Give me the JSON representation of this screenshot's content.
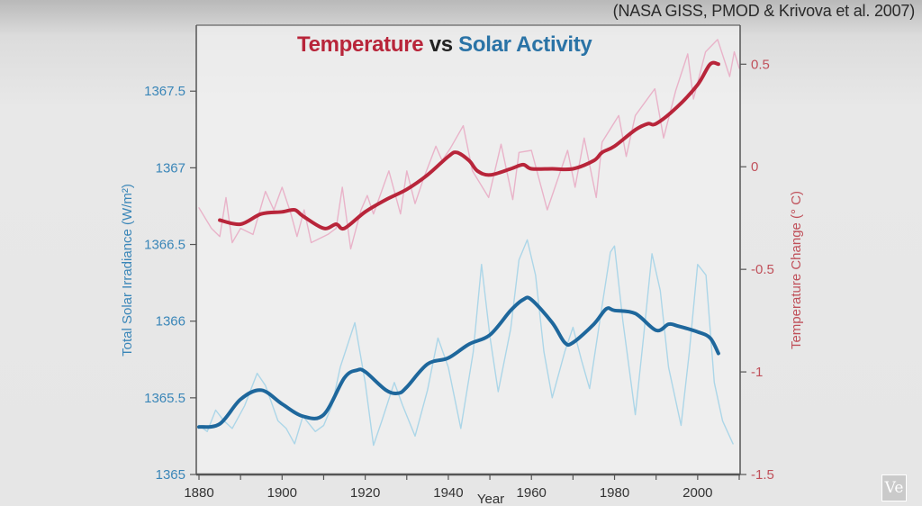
{
  "source": "(NASA GISS, PMOD & Krivova et al. 2007)",
  "logo_text": "Ve",
  "colors": {
    "temperature": "#b8253a",
    "temperature_raw": "#e9b3c9",
    "solar": "#1e679c",
    "solar_raw": "#acd6e8",
    "left_axis_text": "#3a86b8",
    "right_axis_text": "#c0505a"
  },
  "chart_data": {
    "type": "line",
    "title": {
      "part1": "Temperature",
      "part2": "vs",
      "part3": "Solar Activity"
    },
    "xlabel": "Year",
    "ylabel_left": "Total Solar Irradiance (W/m²)",
    "ylabel_right": "Temperature Change (° C)",
    "xlim": [
      1880,
      2010
    ],
    "ylim_left": [
      1365,
      1367.93
    ],
    "ylim_right": [
      -1.5,
      0.69
    ],
    "x_ticks": [
      "1880",
      "1900",
      "1920",
      "1940",
      "1960",
      "1980",
      "2000"
    ],
    "y_ticks_left": [
      "1365",
      "1365.5",
      "1366",
      "1366.5",
      "1367",
      "1367.5"
    ],
    "y_ticks_right": [
      "-1.5",
      "-1",
      "-0.5",
      "0",
      "0.5"
    ],
    "grid": false,
    "series": [
      {
        "key": "solar_raw",
        "axis": "left",
        "x": [
          1880,
          1882,
          1884,
          1886,
          1888,
          1891,
          1894,
          1896,
          1899,
          1901,
          1903,
          1905,
          1908,
          1910,
          1912,
          1914,
          1917.5,
          1920,
          1922,
          1924,
          1927,
          1929,
          1932,
          1935,
          1937.5,
          1940,
          1943,
          1946,
          1948,
          1950,
          1952,
          1955,
          1957,
          1959,
          1961,
          1963,
          1965,
          1968,
          1970,
          1972,
          1974,
          1977,
          1979,
          1980,
          1982,
          1985,
          1987,
          1989,
          1991,
          1993,
          1996,
          1998,
          2000,
          2002,
          2004,
          2006,
          2008.5
        ],
        "y": [
          1365.32,
          1365.28,
          1365.42,
          1365.35,
          1365.3,
          1365.45,
          1365.66,
          1365.58,
          1365.35,
          1365.3,
          1365.2,
          1365.38,
          1365.28,
          1365.32,
          1365.45,
          1365.7,
          1365.99,
          1365.6,
          1365.19,
          1365.35,
          1365.6,
          1365.45,
          1365.25,
          1365.55,
          1365.89,
          1365.7,
          1365.3,
          1365.8,
          1366.37,
          1365.9,
          1365.54,
          1365.95,
          1366.4,
          1366.53,
          1366.3,
          1365.8,
          1365.5,
          1365.8,
          1365.96,
          1365.75,
          1365.56,
          1366.1,
          1366.45,
          1366.49,
          1366.0,
          1365.39,
          1365.9,
          1366.44,
          1366.2,
          1365.7,
          1365.32,
          1365.8,
          1366.37,
          1366.3,
          1365.6,
          1365.35,
          1365.2
        ]
      },
      {
        "key": "solar",
        "axis": "left",
        "x": [
          1880,
          1885,
          1890,
          1895,
          1900,
          1905,
          1910,
          1915,
          1918,
          1920,
          1925,
          1928,
          1930,
          1935,
          1940,
          1945,
          1950,
          1955,
          1958,
          1960,
          1965,
          1968,
          1970,
          1975,
          1978,
          1980,
          1985,
          1990,
          1993,
          1995,
          2000,
          2003,
          2005
        ],
        "y": [
          1365.31,
          1365.33,
          1365.49,
          1365.55,
          1365.46,
          1365.38,
          1365.39,
          1365.63,
          1365.68,
          1365.67,
          1365.55,
          1365.53,
          1365.57,
          1365.72,
          1365.76,
          1365.85,
          1365.91,
          1366.07,
          1366.14,
          1366.14,
          1365.99,
          1365.86,
          1365.86,
          1365.98,
          1366.08,
          1366.07,
          1366.05,
          1365.94,
          1365.98,
          1365.97,
          1365.93,
          1365.89,
          1365.79
        ]
      },
      {
        "key": "temperature_raw",
        "axis": "right",
        "x": [
          1880,
          1883,
          1885,
          1886.5,
          1888,
          1890,
          1893,
          1896,
          1898,
          1900,
          1902,
          1903.6,
          1905.3,
          1907,
          1911,
          1913,
          1914.5,
          1916.5,
          1919,
          1920.5,
          1922,
          1925.7,
          1928.5,
          1930,
          1932,
          1934,
          1937,
          1938.5,
          1940.5,
          1943.6,
          1945.8,
          1949.7,
          1952.7,
          1955.5,
          1957,
          1960,
          1963.8,
          1968.7,
          1970.5,
          1972.7,
          1975.6,
          1977,
          1981,
          1982.8,
          1985,
          1989.7,
          1991.8,
          1994.7,
          1997.6,
          1999,
          2001.9,
          2004.8,
          2007.7,
          2008.8,
          2010
        ],
        "y": [
          -0.2,
          -0.3,
          -0.34,
          -0.15,
          -0.37,
          -0.3,
          -0.33,
          -0.12,
          -0.21,
          -0.1,
          -0.22,
          -0.34,
          -0.21,
          -0.37,
          -0.33,
          -0.3,
          -0.1,
          -0.4,
          -0.21,
          -0.14,
          -0.23,
          -0.02,
          -0.23,
          -0.02,
          -0.18,
          -0.06,
          0.1,
          0.03,
          0.09,
          0.2,
          -0.02,
          -0.15,
          0.11,
          -0.16,
          0.07,
          0.08,
          -0.21,
          0.08,
          -0.1,
          0.14,
          -0.15,
          0.12,
          0.25,
          0.05,
          0.25,
          0.38,
          0.14,
          0.37,
          0.55,
          0.33,
          0.56,
          0.62,
          0.44,
          0.56,
          0.48
        ]
      },
      {
        "key": "temperature",
        "axis": "right",
        "x": [
          1885,
          1890,
          1895,
          1900,
          1903,
          1905,
          1910,
          1913,
          1915,
          1920,
          1925,
          1930,
          1935,
          1940,
          1942,
          1945,
          1947,
          1950,
          1955,
          1958,
          1960,
          1965,
          1970,
          1975,
          1977,
          1980,
          1985,
          1988,
          1990,
          1995,
          2000,
          2003,
          2005
        ],
        "y": [
          -0.26,
          -0.28,
          -0.23,
          -0.22,
          -0.21,
          -0.24,
          -0.3,
          -0.28,
          -0.3,
          -0.22,
          -0.16,
          -0.11,
          -0.04,
          0.05,
          0.07,
          0.03,
          -0.02,
          -0.04,
          -0.01,
          0.01,
          -0.01,
          -0.01,
          -0.01,
          0.03,
          0.07,
          0.1,
          0.18,
          0.21,
          0.21,
          0.29,
          0.4,
          0.5,
          0.5
        ]
      }
    ]
  }
}
